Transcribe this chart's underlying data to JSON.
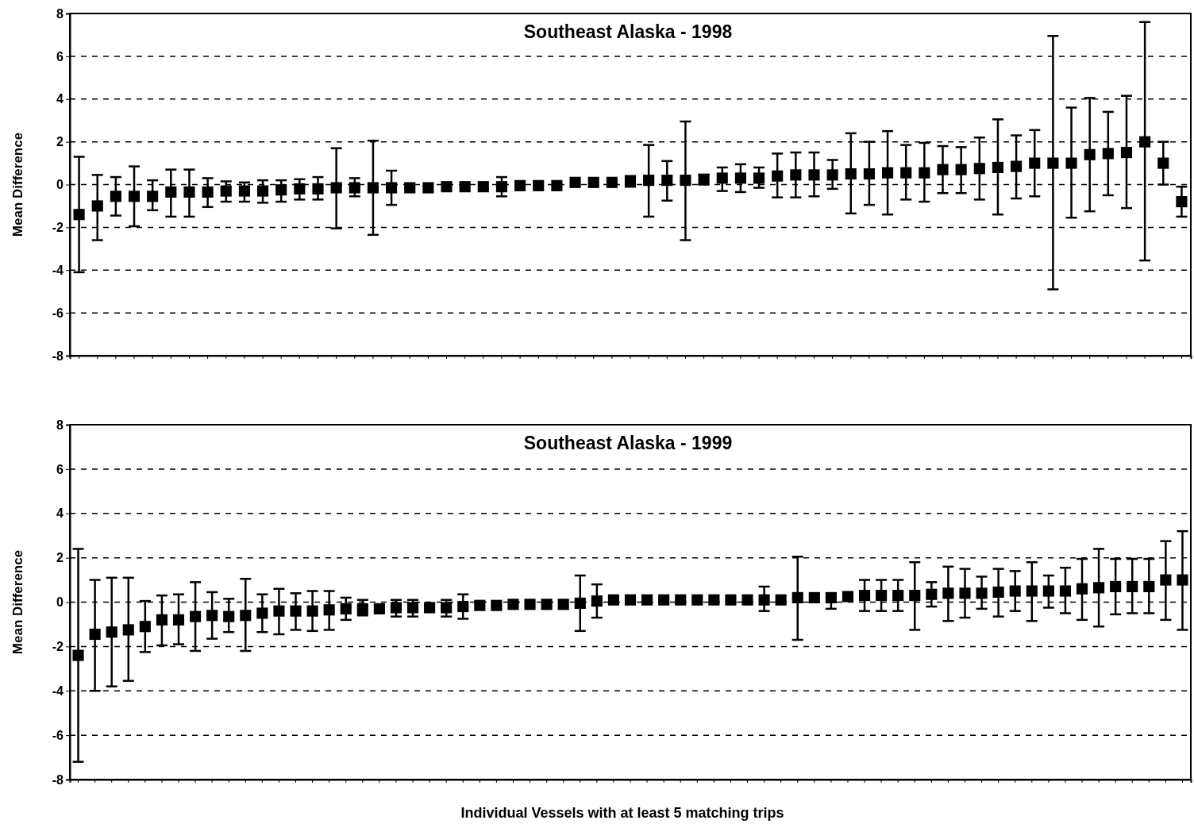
{
  "chart_data": [
    {
      "type": "scatter",
      "title": "Southeast Alaska - 1998",
      "ylabel": "Mean Difference",
      "marker": "square",
      "grid": "y",
      "ylim": [
        -8,
        8
      ],
      "yticks": [
        -8,
        -6,
        -4,
        -2,
        0,
        2,
        4,
        6,
        8
      ],
      "categories": [
        null,
        null,
        null,
        null,
        null,
        null,
        null,
        null,
        null,
        null,
        null,
        null,
        null,
        null,
        null,
        null,
        null,
        null,
        null,
        null,
        null,
        null,
        null,
        null,
        null,
        null,
        null,
        null,
        null,
        null,
        null,
        null,
        null,
        null,
        null,
        null,
        null,
        null,
        null,
        null,
        null,
        null,
        null,
        null,
        null,
        null,
        null,
        null,
        null,
        null,
        null,
        null,
        null,
        null,
        null,
        null,
        null,
        null,
        null,
        null,
        null
      ],
      "series": [
        {
          "color": "#000000",
          "values": [
            -1.4,
            -1.0,
            -0.55,
            -0.55,
            -0.55,
            -0.35,
            -0.35,
            -0.35,
            -0.3,
            -0.3,
            -0.3,
            -0.25,
            -0.2,
            -0.2,
            -0.15,
            -0.15,
            -0.15,
            -0.15,
            -0.15,
            -0.15,
            -0.1,
            -0.1,
            -0.1,
            -0.1,
            -0.05,
            -0.05,
            -0.05,
            0.1,
            0.1,
            0.1,
            0.15,
            0.2,
            0.2,
            0.2,
            0.25,
            0.3,
            0.3,
            0.3,
            0.4,
            0.45,
            0.45,
            0.45,
            0.5,
            0.5,
            0.55,
            0.55,
            0.55,
            0.7,
            0.7,
            0.75,
            0.8,
            0.85,
            1.0,
            1.0,
            1.0,
            1.4,
            1.45,
            1.5,
            2.0,
            1.0,
            -0.8
          ],
          "errors": [
            [
              -4.1,
              1.3
            ],
            [
              -2.6,
              0.45
            ],
            [
              -1.45,
              0.35
            ],
            [
              -1.95,
              0.85
            ],
            [
              -1.2,
              0.2
            ],
            [
              -1.5,
              0.7
            ],
            [
              -1.5,
              0.7
            ],
            [
              -1.05,
              0.3
            ],
            [
              -0.8,
              0.15
            ],
            [
              -0.8,
              0.1
            ],
            [
              -0.85,
              0.2
            ],
            [
              -0.8,
              0.2
            ],
            [
              -0.7,
              0.25
            ],
            [
              -0.7,
              0.35
            ],
            [
              -2.05,
              1.7
            ],
            [
              -0.55,
              0.3
            ],
            [
              -2.35,
              2.05
            ],
            [
              -0.95,
              0.65
            ],
            null,
            null,
            null,
            null,
            null,
            [
              -0.55,
              0.35
            ],
            null,
            null,
            null,
            null,
            null,
            null,
            [
              -0.1,
              0.4
            ],
            [
              -1.5,
              1.85
            ],
            [
              -0.75,
              1.1
            ],
            [
              -2.6,
              2.95
            ],
            [
              0.0,
              0.45
            ],
            [
              -0.3,
              0.8
            ],
            [
              -0.35,
              0.95
            ],
            [
              -0.15,
              0.8
            ],
            [
              -0.6,
              1.45
            ],
            [
              -0.6,
              1.5
            ],
            [
              -0.55,
              1.5
            ],
            [
              -0.2,
              1.15
            ],
            [
              -1.35,
              2.4
            ],
            [
              -0.95,
              2.0
            ],
            [
              -1.4,
              2.5
            ],
            [
              -0.7,
              1.85
            ],
            [
              -0.8,
              1.95
            ],
            [
              -0.4,
              1.8
            ],
            [
              -0.4,
              1.75
            ],
            [
              -0.7,
              2.2
            ],
            [
              -1.4,
              3.05
            ],
            [
              -0.65,
              2.3
            ],
            [
              -0.55,
              2.55
            ],
            [
              -4.9,
              6.95
            ],
            [
              -1.55,
              3.6
            ],
            [
              -1.25,
              4.05
            ],
            [
              -0.5,
              3.4
            ],
            [
              -1.1,
              4.15
            ],
            [
              -3.55,
              7.6
            ],
            [
              0.0,
              2.0
            ],
            [
              -1.5,
              -0.1
            ]
          ]
        }
      ]
    },
    {
      "type": "scatter",
      "title": "Southeast Alaska - 1999",
      "ylabel": "Mean Difference",
      "xlabel": "Individual Vessels with at least 5 matching trips",
      "marker": "square",
      "grid": "y",
      "ylim": [
        -8,
        8
      ],
      "yticks": [
        -8,
        -6,
        -4,
        -2,
        0,
        2,
        4,
        6,
        8
      ],
      "categories": [
        null,
        null,
        null,
        null,
        null,
        null,
        null,
        null,
        null,
        null,
        null,
        null,
        null,
        null,
        null,
        null,
        null,
        null,
        null,
        null,
        null,
        null,
        null,
        null,
        null,
        null,
        null,
        null,
        null,
        null,
        null,
        null,
        null,
        null,
        null,
        null,
        null,
        null,
        null,
        null,
        null,
        null,
        null,
        null,
        null,
        null,
        null,
        null,
        null,
        null,
        null,
        null,
        null,
        null,
        null,
        null,
        null,
        null,
        null,
        null,
        null,
        null,
        null,
        null,
        null,
        null,
        null
      ],
      "series": [
        {
          "color": "#000000",
          "values": [
            -2.4,
            -1.45,
            -1.35,
            -1.25,
            -1.1,
            -0.8,
            -0.8,
            -0.65,
            -0.6,
            -0.65,
            -0.6,
            -0.5,
            -0.4,
            -0.4,
            -0.4,
            -0.35,
            -0.3,
            -0.3,
            -0.3,
            -0.25,
            -0.25,
            -0.25,
            -0.25,
            -0.2,
            -0.15,
            -0.15,
            -0.1,
            -0.1,
            -0.1,
            -0.1,
            -0.05,
            0.05,
            0.1,
            0.1,
            0.1,
            0.1,
            0.1,
            0.1,
            0.1,
            0.1,
            0.1,
            0.1,
            0.1,
            0.2,
            0.2,
            0.2,
            0.25,
            0.3,
            0.3,
            0.3,
            0.3,
            0.35,
            0.4,
            0.4,
            0.4,
            0.45,
            0.5,
            0.5,
            0.5,
            0.5,
            0.6,
            0.65,
            0.7,
            0.7,
            0.7,
            1.0,
            1.0
          ],
          "errors": [
            [
              -7.2,
              2.4
            ],
            [
              -4.0,
              1.0
            ],
            [
              -3.8,
              1.1
            ],
            [
              -3.55,
              1.1
            ],
            [
              -2.25,
              0.05
            ],
            [
              -1.95,
              0.3
            ],
            [
              -1.9,
              0.35
            ],
            [
              -2.2,
              0.9
            ],
            [
              -1.65,
              0.45
            ],
            [
              -1.35,
              0.15
            ],
            [
              -2.2,
              1.05
            ],
            [
              -1.35,
              0.35
            ],
            [
              -1.45,
              0.6
            ],
            [
              -1.25,
              0.4
            ],
            [
              -1.3,
              0.5
            ],
            [
              -1.25,
              0.5
            ],
            [
              -0.8,
              0.2
            ],
            [
              -0.6,
              0.1
            ],
            null,
            [
              -0.65,
              0.1
            ],
            [
              -0.65,
              0.1
            ],
            null,
            [
              -0.65,
              0.1
            ],
            [
              -0.75,
              0.35
            ],
            null,
            null,
            null,
            null,
            null,
            null,
            [
              -1.3,
              1.2
            ],
            [
              -0.7,
              0.8
            ],
            null,
            null,
            null,
            null,
            null,
            null,
            null,
            null,
            null,
            [
              -0.4,
              0.7
            ],
            null,
            [
              -1.7,
              2.05
            ],
            null,
            [
              -0.3,
              0.4
            ],
            null,
            [
              -0.4,
              1.0
            ],
            [
              -0.4,
              1.0
            ],
            [
              -0.4,
              1.0
            ],
            [
              -1.25,
              1.8
            ],
            [
              -0.2,
              0.9
            ],
            [
              -0.85,
              1.6
            ],
            [
              -0.7,
              1.5
            ],
            [
              -0.3,
              1.15
            ],
            [
              -0.65,
              1.5
            ],
            [
              -0.4,
              1.4
            ],
            [
              -0.85,
              1.8
            ],
            [
              -0.25,
              1.2
            ],
            [
              -0.5,
              1.55
            ],
            [
              -0.8,
              1.95
            ],
            [
              -1.1,
              2.4
            ],
            [
              -0.55,
              1.95
            ],
            [
              -0.5,
              1.95
            ],
            [
              -0.5,
              1.95
            ],
            [
              -0.8,
              2.75
            ],
            [
              -1.25,
              3.2
            ]
          ]
        }
      ]
    }
  ]
}
